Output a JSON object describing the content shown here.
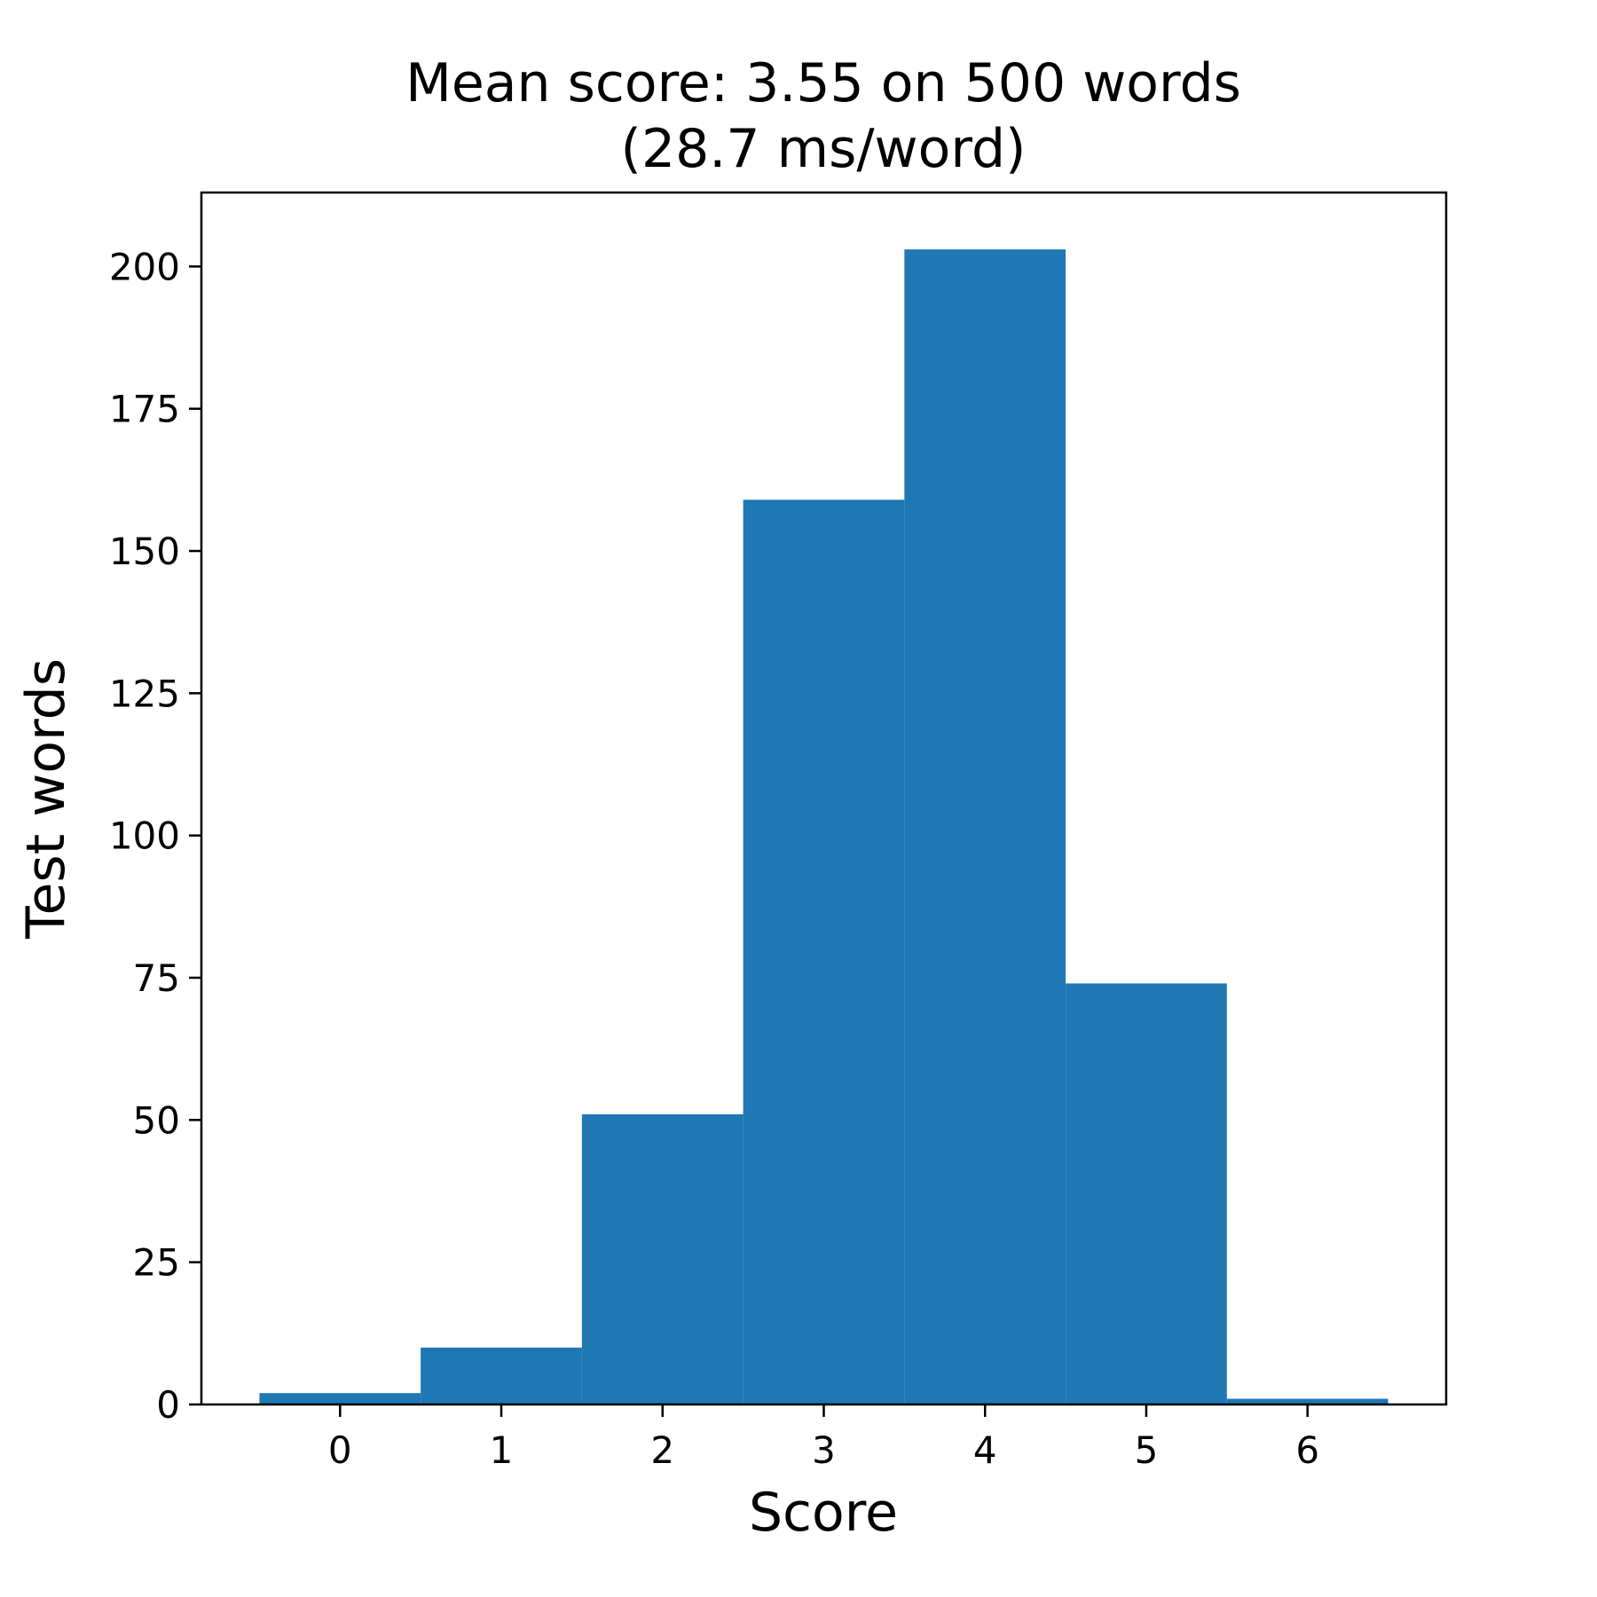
{
  "chart_data": {
    "type": "bar",
    "title_lines": [
      "Mean score: 3.55 on 500 words",
      "(28.7 ms/word)"
    ],
    "xlabel": "Score",
    "ylabel": "Test words",
    "categories": [
      "0",
      "1",
      "2",
      "3",
      "4",
      "5",
      "6"
    ],
    "x": [
      0,
      1,
      2,
      3,
      4,
      5,
      6
    ],
    "values": [
      2,
      10,
      51,
      159,
      203,
      74,
      1
    ],
    "bin_width": 1,
    "xlim": [
      -0.86,
      6.86
    ],
    "ylim": [
      0,
      213
    ],
    "xticks": [
      "0",
      "1",
      "2",
      "3",
      "4",
      "5",
      "6"
    ],
    "yticks": [
      "0",
      "25",
      "50",
      "75",
      "100",
      "125",
      "150",
      "175",
      "200"
    ],
    "grid": false,
    "bar_color": "#1f77b4"
  }
}
